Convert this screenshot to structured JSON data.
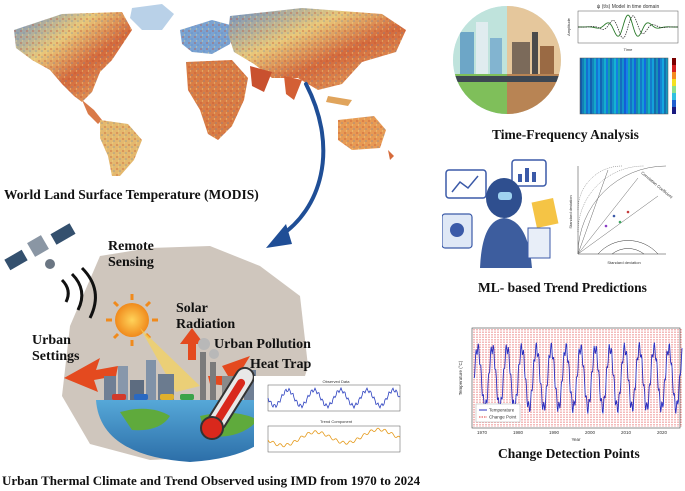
{
  "captions": {
    "world_lst": "World Land Surface Temperature (MODIS)",
    "tfa": "Time-Frequency Analysis",
    "ml": "ML- based Trend Predictions",
    "cdp": "Change Detection Points",
    "urban": "Urban Thermal Climate and Trend Observed using IMD from 1970 to 2024"
  },
  "labels": {
    "remote": "Remote",
    "sensing": "Sensing",
    "solar": "Solar",
    "radiation": "Radiation",
    "urban": "Urban",
    "settings": "Settings",
    "urban_pollution": "Urban Pollution",
    "heat_trap": "Heat Trap"
  },
  "mini_charts": {
    "wavelet_title": "ψ (t/s) Model in time domain",
    "wavelet_xlabel": "Time",
    "wavelet_ylabel": "Amplitude",
    "taylor_xlabel": "Standard deviation",
    "taylor_ylabel": "Standard deviation",
    "taylor_arc_label": "Correlation Coefficient",
    "observed_title": "Observed Data",
    "trend_title": "Trend Component",
    "cdp_ylabel": "Temperature (°C)",
    "cdp_xlabel": "Year",
    "cdp_legend_temp": "Temperature",
    "cdp_legend_change": "Change Point",
    "cdp_xticks": [
      "1970",
      "1980",
      "1990",
      "2000",
      "2010",
      "2020"
    ]
  },
  "colors": {
    "arrow": "#1f4e96",
    "sun": "#f4a41c",
    "heat": "#e44a1f",
    "map_hot": "#c8553d",
    "map_cold": "#3f6fb5"
  }
}
